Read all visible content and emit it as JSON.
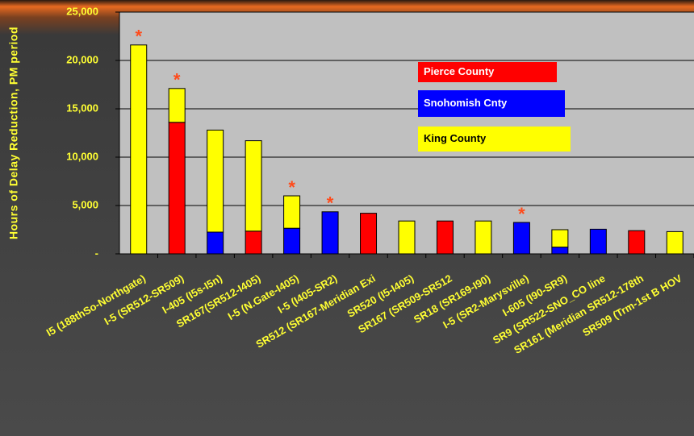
{
  "chart_data": {
    "type": "stacked_bar",
    "y_label": "Hours of Delay Reduction, PM period",
    "categories": [
      "I5 (188thSo-Northgate)",
      "I-5 (SR512-SR509)",
      "I-405 (I5s-I5n)",
      "SR167(SR512-I405)",
      "I-5 (N.Gate-I405)",
      "I-5 (I405-SR2)",
      "SR512 (SR167-Meridian Exi",
      "SR520 (I5-I405)",
      "SR167 (SR509-SR512",
      "SR18 (SR169-I90)",
      "I-5 (SR2-Marysville)",
      "I-605 (I90-SR9)",
      "SR9 (SR522-SNO_CO line",
      "SR161 (Meridian SR512-178th",
      "SR509  (Trm-1st B HOV"
    ],
    "series": [
      {
        "name": "Pierce County",
        "color": "#ff0000",
        "values": [
          null,
          13600,
          null,
          2350,
          null,
          null,
          4200,
          null,
          3400,
          null,
          null,
          null,
          null,
          2400,
          null
        ]
      },
      {
        "name": "Snohomish Cnty",
        "color": "#0000ff",
        "values": [
          null,
          null,
          2250,
          null,
          2650,
          4350,
          null,
          null,
          null,
          null,
          3250,
          700,
          2550,
          null,
          null
        ]
      },
      {
        "name": "King County",
        "color": "#ffff00",
        "values": [
          21600,
          3500,
          10550,
          9350,
          3350,
          null,
          null,
          3400,
          null,
          3400,
          null,
          1800,
          null,
          null,
          2300
        ]
      }
    ],
    "annotations": [
      "*",
      "*",
      null,
      null,
      "*",
      "*",
      null,
      null,
      null,
      null,
      "*",
      null,
      null,
      null,
      null
    ],
    "ylim": [
      0,
      25000
    ],
    "yticks": [
      {
        "value": 0,
        "label": "-"
      },
      {
        "value": 5000,
        "label": "5,000"
      },
      {
        "value": 10000,
        "label": "10,000"
      },
      {
        "value": 15000,
        "label": "15,000"
      },
      {
        "value": 20000,
        "label": "20,000"
      },
      {
        "value": 25000,
        "label": "25,000"
      }
    ],
    "grid": true,
    "legend": "upper center"
  }
}
